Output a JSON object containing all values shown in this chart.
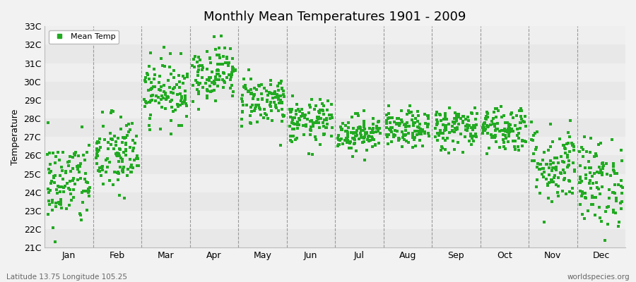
{
  "title": "Monthly Mean Temperatures 1901 - 2009",
  "ylabel": "Temperature",
  "bottom_left_text": "Latitude 13.75 Longitude 105.25",
  "bottom_right_text": "worldspecies.org",
  "legend_label": "Mean Temp",
  "dot_color": "#22aa22",
  "background_color": "#f2f2f2",
  "plot_bg_color": "#f2f2f2",
  "ylim": [
    21,
    33
  ],
  "ytick_labels": [
    "21C",
    "22C",
    "23C",
    "24C",
    "25C",
    "26C",
    "27C",
    "28C",
    "29C",
    "30C",
    "31C",
    "32C",
    "33C"
  ],
  "ytick_values": [
    21,
    22,
    23,
    24,
    25,
    26,
    27,
    28,
    29,
    30,
    31,
    32,
    33
  ],
  "months": [
    "Jan",
    "Feb",
    "Mar",
    "Apr",
    "May",
    "Jun",
    "Jul",
    "Aug",
    "Sep",
    "Oct",
    "Nov",
    "Dec"
  ],
  "n_years": 109,
  "seed": 42,
  "monthly_mean": [
    24.5,
    26.0,
    29.5,
    30.5,
    29.0,
    27.8,
    27.2,
    27.4,
    27.5,
    27.5,
    25.5,
    24.5
  ],
  "monthly_std": [
    1.2,
    1.1,
    0.85,
    0.75,
    0.7,
    0.6,
    0.5,
    0.5,
    0.6,
    0.65,
    1.1,
    1.2
  ]
}
